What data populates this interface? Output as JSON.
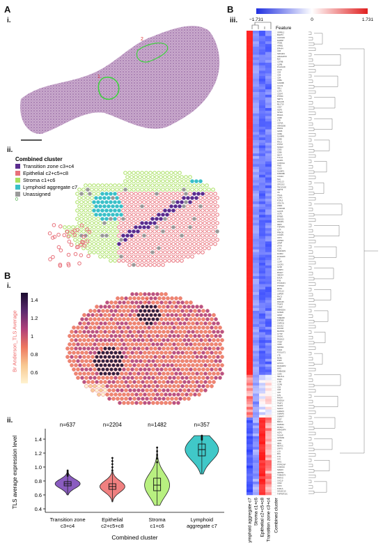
{
  "panels": {
    "A": "A",
    "A_i": "i.",
    "A_ii": "ii.",
    "B_left": "B",
    "B_left_i": "i.",
    "B_left_ii": "ii.",
    "B_right": "B",
    "B_right_iii": "iii."
  },
  "histology": {
    "region_labels": [
      "1",
      "2"
    ]
  },
  "cluster_legend": {
    "title": "Combined cluster",
    "items": [
      {
        "label": "Transition zone c3+c4",
        "color": "#5b2d8f"
      },
      {
        "label": "Epithelial c2+c5+c8",
        "color": "#e8707a"
      },
      {
        "label": "Stroma c1+c6",
        "color": "#a8e060"
      },
      {
        "label": "Lymphoid aggregate c7",
        "color": "#39c0c8"
      },
      {
        "label": "Unassigned",
        "color": "#9a9a9a"
      }
    ],
    "extra_mark": "0"
  },
  "tls_colorbar": {
    "label": "Br Anderson_TLS Average",
    "ticks": [
      "1.4",
      "1.2",
      "1",
      "0.8",
      "0.6"
    ]
  },
  "heatmap": {
    "scale_min": "−1.731",
    "scale_mid": "0",
    "scale_max": "1.731",
    "feature_label": "Feature",
    "columns": [
      "Lymphoid aggregate c7",
      "Stroma c1+c6",
      "Epithelial c2+c5+c8",
      "Transition zone c3+c4",
      "Combined cluster"
    ],
    "genes": [
      "GRPEL2",
      "BAMT3",
      "CACNA1I",
      "DHRSP",
      "ITGB1",
      "APAB1",
      "EPHA4",
      "CD6",
      "SMCHD1",
      "ARHGAP15",
      "BLK",
      "CD79B",
      "IL2RB",
      "PLA2G2D",
      "CCL5",
      "CD3",
      "CD6",
      "CD4",
      "CD8A",
      "ICAM3B",
      "CCL19",
      "SELL",
      "LCP2",
      "CD247",
      "PTPRC",
      "SEPT1",
      "BCL11B",
      "MLLT10",
      "CD27",
      "IKZF3",
      "SP140",
      "MS4A1",
      "CD38",
      "LTB",
      "CD79A",
      "ARHGDIB",
      "RNF31",
      "GZMK",
      "CD3E",
      "SLAMF6",
      "CD48",
      "RAC2",
      "PTPN7",
      "SASH3",
      "CD52",
      "CD96",
      "NKG7",
      "TCL1A",
      "ACAP1",
      "CORO1A",
      "PIM2",
      "CD19",
      "SLAMF1",
      "FAMM3B",
      "CXCR4",
      "SLA",
      "CXCL13",
      "SPOCK2",
      "TBC1D10C",
      "SEPT6",
      "ITK",
      "ITGAL",
      "IL2RG",
      "FCRL5",
      "STK17A",
      "LIME1",
      "CORO1B",
      "ALOX5",
      "UCP2",
      "EPSB3",
      "PIK3CD",
      "PIK3IP1",
      "DEF6",
      "TNFAIP8",
      "IL7R",
      "PRKCB",
      "CXCR5",
      "CD74",
      "ATP8A1",
      "LRMP",
      "LPXN",
      "LCP1",
      "TRAF3IP3",
      "DUSP2",
      "ZC3H12D",
      "LY9",
      "CCR7",
      "CXCR3",
      "IL21R",
      "LAMP3",
      "MS4A7",
      "ABCD4",
      "EVI2A",
      "FYB",
      "POU2AF1",
      "PTPN22",
      "MPP1",
      "CXCL12",
      "LMPER",
      "RAC3",
      "EMB",
      "RNF125",
      "TRAF3",
      "TXNIP",
      "ARHGDIA",
      "SOSM2",
      "GRAP",
      "TMEM48",
      "ZNF568",
      "CARD11",
      "DOCK2",
      "DOCK8",
      "MAP4K1",
      "CYTIP",
      "SASH1",
      "RASAL3",
      "ITGB7",
      "CD69",
      "NFKBIA",
      "TMC6",
      "POGLUT1",
      "LTB",
      "MZB1",
      "PLEK",
      "HVCN1",
      "RASGRP2",
      "WAS",
      "TMEM156",
      "CD40",
      "SELPLG",
      "DGKA",
      "LY86",
      "CCR6",
      "CD2",
      "CD5",
      "CD7",
      "SIT1",
      "RHOH",
      "SH2D1A",
      "TRAT1",
      "SKAP1",
      "NLRC3",
      "GIMAP4",
      "GIMAP5",
      "GIMAP7",
      "CD37",
      "BIRC3",
      "RAB33A",
      "RCSD1",
      "ARHGAP4",
      "IKZF1",
      "TAGAP",
      "GPR183",
      "CD83",
      "IRF8",
      "MEF2C",
      "ZAP70",
      "LCK",
      "BTK",
      "FYN",
      "SYK",
      "VAV1",
      "PTPRCAP",
      "CORO1C",
      "SMAP2",
      "INPP5D",
      "TMEM273",
      "PARVG",
      "CXCL9",
      "CD22",
      "CD72",
      "FCRLA",
      "SIGLEC10",
      "TNFRSF13C"
    ]
  },
  "violin_plot": {
    "ylabel": "TLS average expression level",
    "xlabel": "Combined cluster",
    "yticks": [
      "1.4",
      "1.2",
      "1.0",
      "0.8",
      "0.6",
      "0.4"
    ]
  },
  "chart_data": {
    "type": "violin",
    "xlabel": "Combined cluster",
    "ylabel": "TLS average expression level",
    "ylim": [
      0.35,
      1.5
    ],
    "categories": [
      "Transition zone\nc3+c4",
      "Epithelial\nc2+c5+c8",
      "Stroma\nc1+c6",
      "Lymphoid\naggregate c7"
    ],
    "n_labels": [
      "n=637",
      "n=2204",
      "n=1482",
      "n=357"
    ],
    "colors": [
      "#8a5cc0",
      "#f08080",
      "#b8f080",
      "#40c8c8"
    ],
    "medians": [
      0.76,
      0.72,
      0.74,
      1.25
    ],
    "q1": [
      0.73,
      0.68,
      0.66,
      1.16
    ],
    "q3": [
      0.79,
      0.76,
      0.84,
      1.33
    ],
    "min": [
      0.6,
      0.5,
      0.45,
      0.9
    ],
    "max": [
      0.95,
      1.13,
      1.28,
      1.45
    ]
  }
}
